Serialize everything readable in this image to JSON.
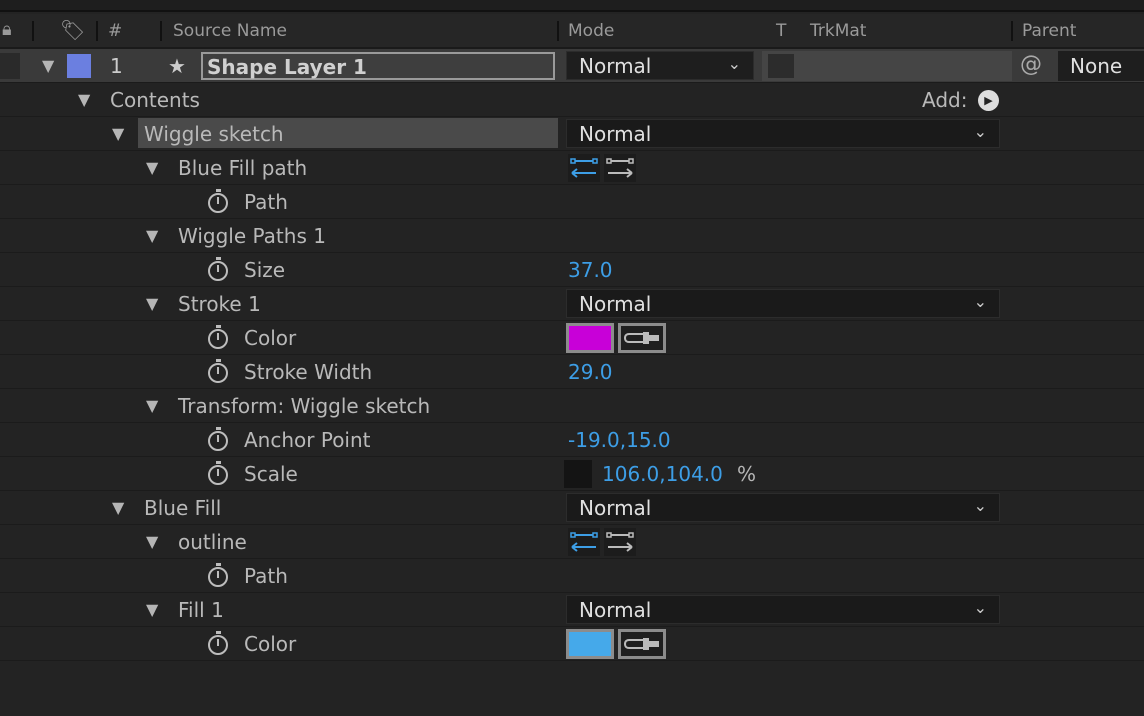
{
  "header": {
    "source_name": "Source Name",
    "number": "#",
    "mode": "Mode",
    "t": "T",
    "trkmat": "TrkMat",
    "parent": "Parent"
  },
  "layer": {
    "number": "1",
    "name": "Shape Layer 1",
    "mode": "Normal",
    "parent": "None",
    "label_color": "#6b7fe0"
  },
  "contents": {
    "label": "Contents",
    "add_label": "Add:"
  },
  "colors": {
    "accent": "#3d9ee6",
    "stroke_color": "#c800d8",
    "fill_color": "#45a9ea"
  },
  "rows": [
    {
      "level": 2,
      "label": "Wiggle sketch",
      "twirl": true,
      "mode": "Normal",
      "selected": true
    },
    {
      "level": 3,
      "label": "Blue Fill path",
      "twirl": true,
      "pathops": true
    },
    {
      "level": 4,
      "label": "Path",
      "stopwatch": true
    },
    {
      "level": 3,
      "label": "Wiggle Paths 1",
      "twirl": true
    },
    {
      "level": 4,
      "label": "Size",
      "stopwatch": true,
      "value": "37.0"
    },
    {
      "level": 3,
      "label": "Stroke 1",
      "twirl": true,
      "mode": "Normal"
    },
    {
      "level": 4,
      "label": "Color",
      "stopwatch": true,
      "color": "#c800d8"
    },
    {
      "level": 4,
      "label": "Stroke Width",
      "stopwatch": true,
      "value": "29.0"
    },
    {
      "level": 3,
      "label": "Transform: Wiggle sketch",
      "twirl": true
    },
    {
      "level": 4,
      "label": "Anchor Point",
      "stopwatch": true,
      "value": "-19.0,15.0"
    },
    {
      "level": 4,
      "label": "Scale",
      "stopwatch": true,
      "value": "106.0,104.0",
      "unit": "%",
      "link": true
    },
    {
      "level": 2,
      "label": "Blue Fill",
      "twirl": true,
      "mode": "Normal"
    },
    {
      "level": 3,
      "label": "outline",
      "twirl": true,
      "pathops": true
    },
    {
      "level": 4,
      "label": "Path",
      "stopwatch": true
    },
    {
      "level": 3,
      "label": "Fill 1",
      "twirl": true,
      "mode": "Normal"
    },
    {
      "level": 4,
      "label": "Color",
      "stopwatch": true,
      "color": "#45a9ea"
    }
  ]
}
